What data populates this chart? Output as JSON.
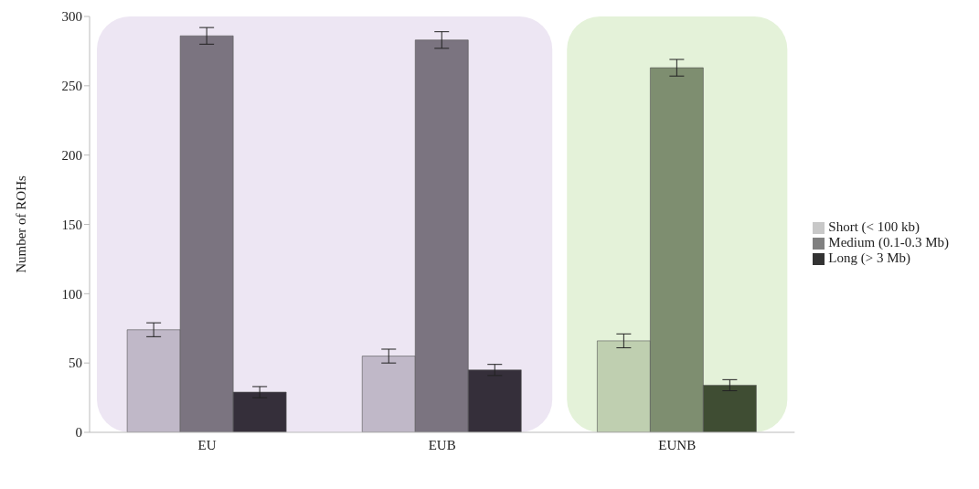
{
  "chart_data": {
    "type": "bar",
    "ylabel": "Number of ROHs",
    "categories": [
      "EU",
      "EUB",
      "EUNB"
    ],
    "ylim": [
      0,
      300
    ],
    "yticks": [
      0,
      50,
      100,
      150,
      200,
      250,
      300
    ],
    "legend": "right",
    "series": [
      {
        "name": "Short (< 100 kb)",
        "color": "#c8c8c8",
        "colors": [
          "#c0b8c8",
          "#c0b8c8",
          "#bfcfb0"
        ],
        "values": [
          74,
          55,
          66
        ],
        "errors": [
          5,
          5,
          5
        ]
      },
      {
        "name": "Medium (0.1-0.3 Mb)",
        "color": "#808080",
        "colors": [
          "#7b7480",
          "#7b7480",
          "#7e8e70"
        ],
        "values": [
          286,
          283,
          263
        ],
        "errors": [
          6,
          6,
          6
        ]
      },
      {
        "name": "Long (> 3 Mb)",
        "color": "#333333",
        "colors": [
          "#352f3a",
          "#352f3a",
          "#3f4d33"
        ],
        "values": [
          29,
          45,
          34
        ],
        "errors": [
          4,
          4,
          4
        ]
      }
    ],
    "bands": [
      {
        "axis": "x",
        "from": "EU",
        "to": "EUB",
        "color": "#ede6f3"
      },
      {
        "axis": "x",
        "from": "EUNB",
        "to": "EUNB",
        "color": "#e4f2d9"
      }
    ]
  }
}
